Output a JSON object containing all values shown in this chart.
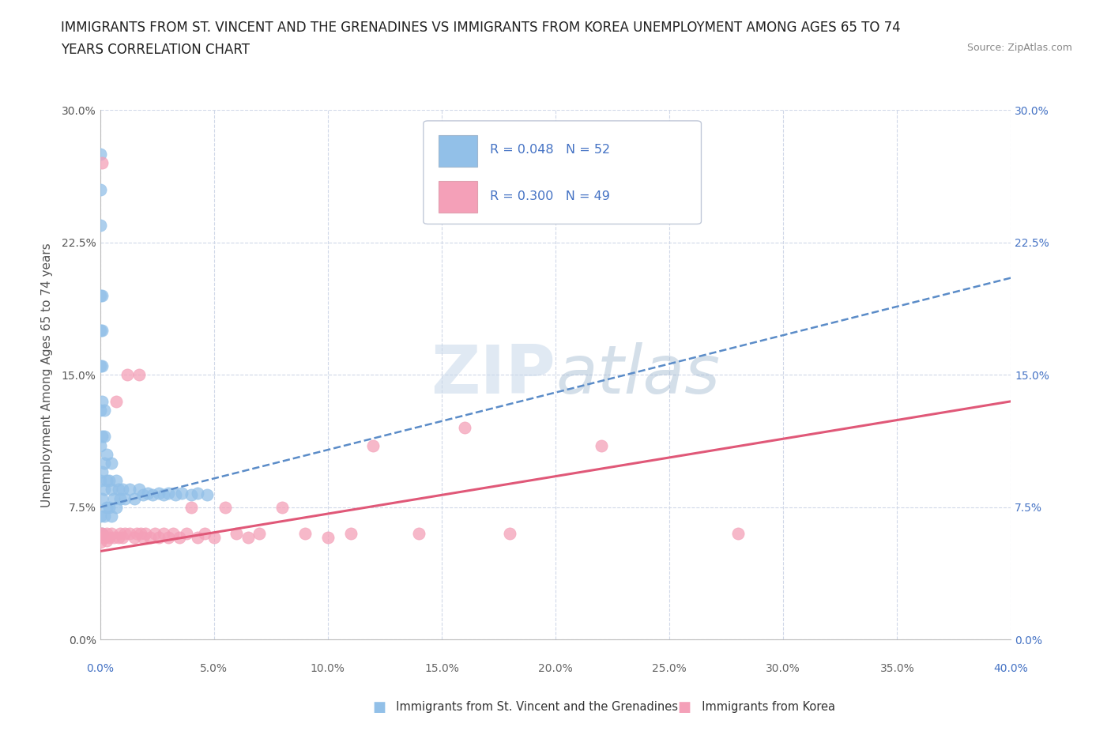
{
  "title_line1": "IMMIGRANTS FROM ST. VINCENT AND THE GRENADINES VS IMMIGRANTS FROM KOREA UNEMPLOYMENT AMONG AGES 65 TO 74",
  "title_line2": "YEARS CORRELATION CHART",
  "source_text": "Source: ZipAtlas.com",
  "ylabel": "Unemployment Among Ages 65 to 74 years",
  "xlim": [
    0.0,
    0.4
  ],
  "ylim": [
    0.0,
    0.3
  ],
  "yticks": [
    0.0,
    0.075,
    0.15,
    0.225,
    0.3
  ],
  "ytick_labels": [
    "0.0%",
    "7.5%",
    "15.0%",
    "22.5%",
    "30.0%"
  ],
  "xticks": [
    0.0,
    0.05,
    0.1,
    0.15,
    0.2,
    0.25,
    0.3,
    0.35,
    0.4
  ],
  "blue_color": "#92c0e8",
  "pink_color": "#f4a0b8",
  "blue_line_color": "#5b8cc8",
  "pink_line_color": "#e05878",
  "legend_text_color": "#4472c4",
  "watermark_color": "#c8d8e8",
  "blue_scatter_x": [
    0.0,
    0.0,
    0.0,
    0.0,
    0.0,
    0.0,
    0.0,
    0.0,
    0.0,
    0.0,
    0.001,
    0.001,
    0.001,
    0.001,
    0.001,
    0.001,
    0.001,
    0.001,
    0.002,
    0.002,
    0.002,
    0.002,
    0.002,
    0.003,
    0.003,
    0.003,
    0.004,
    0.004,
    0.005,
    0.005,
    0.005,
    0.006,
    0.007,
    0.007,
    0.008,
    0.009,
    0.01,
    0.011,
    0.013,
    0.015,
    0.017,
    0.019,
    0.021,
    0.023,
    0.026,
    0.028,
    0.03,
    0.033,
    0.036,
    0.04,
    0.043,
    0.047
  ],
  "blue_scatter_y": [
    0.275,
    0.255,
    0.235,
    0.195,
    0.175,
    0.155,
    0.13,
    0.11,
    0.09,
    0.07,
    0.195,
    0.175,
    0.155,
    0.135,
    0.115,
    0.095,
    0.08,
    0.06,
    0.13,
    0.115,
    0.1,
    0.085,
    0.07,
    0.105,
    0.09,
    0.075,
    0.09,
    0.075,
    0.1,
    0.085,
    0.07,
    0.08,
    0.09,
    0.075,
    0.085,
    0.08,
    0.085,
    0.08,
    0.085,
    0.08,
    0.085,
    0.082,
    0.083,
    0.082,
    0.083,
    0.082,
    0.083,
    0.082,
    0.083,
    0.082,
    0.083,
    0.082
  ],
  "pink_scatter_x": [
    0.0,
    0.0,
    0.001,
    0.001,
    0.002,
    0.003,
    0.003,
    0.004,
    0.005,
    0.006,
    0.007,
    0.008,
    0.009,
    0.01,
    0.011,
    0.012,
    0.013,
    0.015,
    0.016,
    0.017,
    0.018,
    0.019,
    0.02,
    0.022,
    0.024,
    0.026,
    0.028,
    0.03,
    0.032,
    0.035,
    0.038,
    0.04,
    0.043,
    0.046,
    0.05,
    0.055,
    0.06,
    0.065,
    0.07,
    0.08,
    0.09,
    0.1,
    0.11,
    0.12,
    0.14,
    0.16,
    0.18,
    0.22,
    0.28
  ],
  "pink_scatter_y": [
    0.06,
    0.055,
    0.27,
    0.06,
    0.058,
    0.06,
    0.056,
    0.058,
    0.06,
    0.058,
    0.135,
    0.058,
    0.06,
    0.058,
    0.06,
    0.15,
    0.06,
    0.058,
    0.06,
    0.15,
    0.06,
    0.058,
    0.06,
    0.058,
    0.06,
    0.058,
    0.06,
    0.058,
    0.06,
    0.058,
    0.06,
    0.075,
    0.058,
    0.06,
    0.058,
    0.075,
    0.06,
    0.058,
    0.06,
    0.075,
    0.06,
    0.058,
    0.06,
    0.11,
    0.06,
    0.12,
    0.06,
    0.11,
    0.06
  ],
  "grid_color": "#d0d8e8",
  "bg_color": "#ffffff",
  "title_fontsize": 12,
  "axis_label_fontsize": 11,
  "tick_fontsize": 10
}
